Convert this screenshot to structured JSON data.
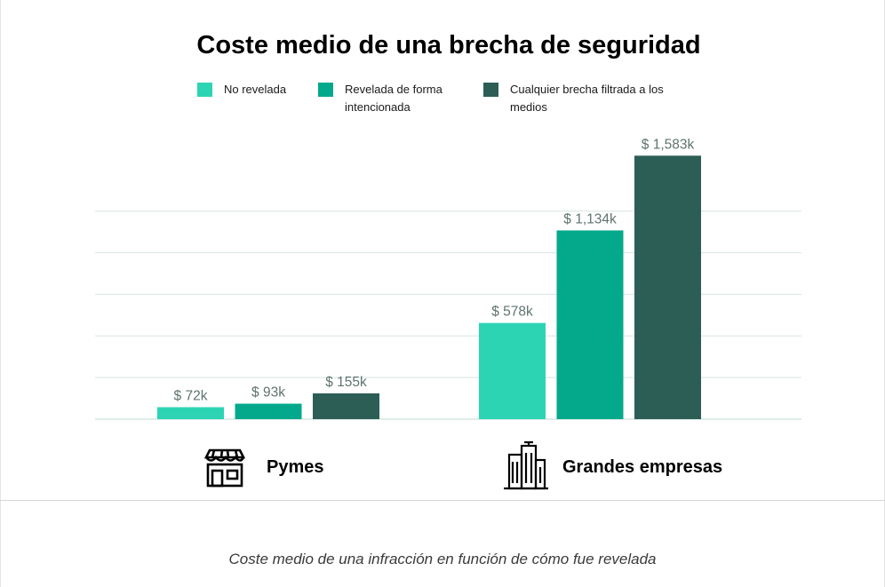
{
  "chart_data": {
    "type": "bar",
    "title": "Coste medio de una brecha de seguridad",
    "categories": [
      "Pymes",
      "Grandes empresas"
    ],
    "series": [
      {
        "name": "No revelada",
        "values": [
          72,
          578
        ],
        "labels": [
          "$ 72k",
          "$ 578k"
        ],
        "color": "#2dd4b4"
      },
      {
        "name_lines": [
          "Revelada de forma",
          "intencionada"
        ],
        "name": "Revelada de forma intencionada",
        "values": [
          93,
          1134
        ],
        "labels": [
          "$ 93k",
          "$ 1,134k"
        ],
        "color": "#04a98b"
      },
      {
        "name_lines": [
          "Cualquier brecha filtrada a los",
          "medios"
        ],
        "name": "Cualquier brecha filtrada a los medios",
        "values": [
          155,
          1583
        ],
        "labels": [
          "$ 155k",
          "$ 1,583k"
        ],
        "color": "#2c5e56"
      }
    ],
    "ylim": [
      0,
      1750
    ],
    "grid": true,
    "legend_position": "top",
    "category_icons": [
      "storefront-icon",
      "buildings-icon"
    ],
    "gridline_color": "#d5e6e1",
    "label_color": "#5f7370"
  },
  "caption": "Coste medio de una infracción en función de cómo fue revelada"
}
